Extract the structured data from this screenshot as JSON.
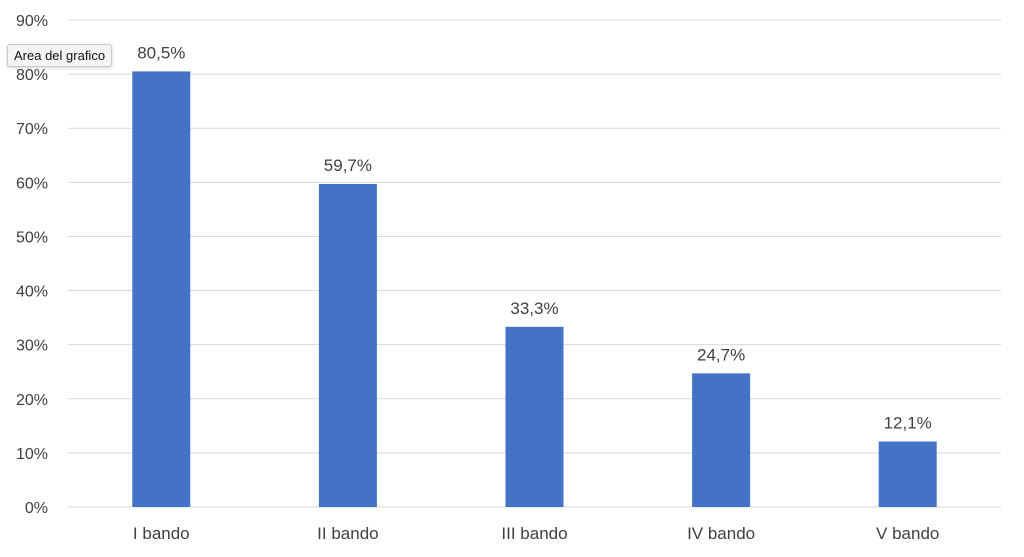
{
  "tooltip": {
    "text": "Area del grafico"
  },
  "chart_data": {
    "type": "bar",
    "title": "",
    "xlabel": "",
    "ylabel": "",
    "categories": [
      "I bando",
      "II bando",
      "III bando",
      "IV bando",
      "V bando"
    ],
    "values": [
      80.5,
      59.7,
      33.3,
      24.7,
      12.1
    ],
    "data_labels": [
      "80,5%",
      "59,7%",
      "33,3%",
      "24,7%",
      "12,1%"
    ],
    "ylim": [
      0,
      90
    ],
    "yticks": [
      0,
      10,
      20,
      30,
      40,
      50,
      60,
      70,
      80,
      90
    ],
    "ytick_labels": [
      "0%",
      "10%",
      "20%",
      "30%",
      "40%",
      "50%",
      "60%",
      "70%",
      "80%",
      "90%"
    ],
    "grid": true,
    "legend": "none",
    "bar_color": "#4472C4",
    "grid_color": "#D9D9D9",
    "text_color": "#404040"
  }
}
